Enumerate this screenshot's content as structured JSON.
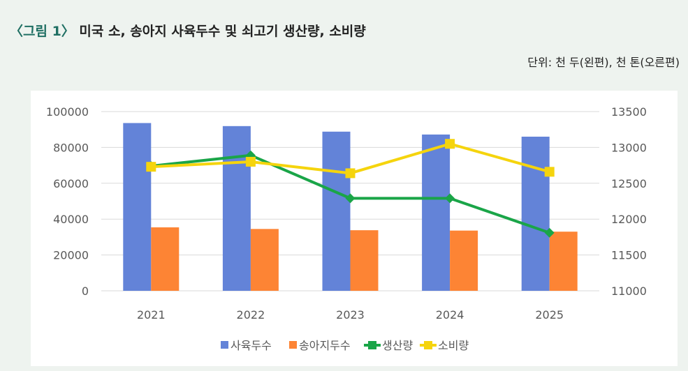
{
  "header": {
    "figure_label": "〈그림 1〉",
    "figure_title": "미국 소, 송아지 사육두수 및 쇠고기 생산량, 소비량",
    "units": "단위: 천 두(왼편), 천 톤(오른편)"
  },
  "colors": {
    "background": "#eef3ef",
    "title_accent": "#1f6f63",
    "cattle": "#6383d8",
    "calves": "#fd8434",
    "production": "#1aa548",
    "consumption": "#f5d40d"
  },
  "chart_data": {
    "type": "bar",
    "title": "",
    "categories": [
      "2021",
      "2022",
      "2023",
      "2024",
      "2025"
    ],
    "y_left": {
      "range": [
        0,
        100000
      ],
      "ticks": [
        "100000",
        "80000",
        "60000",
        "40000",
        "20000",
        "0"
      ],
      "tick_values": [
        100000,
        80000,
        60000,
        40000,
        20000,
        0
      ]
    },
    "y_right": {
      "range": [
        11000,
        13500
      ],
      "ticks": [
        "13500",
        "13000",
        "12500",
        "12000",
        "11500",
        "11000"
      ],
      "tick_values": [
        13500,
        13000,
        12500,
        12000,
        11500,
        11000
      ]
    },
    "grid": true,
    "legend_position": "bottom",
    "series": [
      {
        "name": "사육두수",
        "type": "bar",
        "axis": "left",
        "values": [
          93600,
          91900,
          88800,
          87200,
          86000
        ]
      },
      {
        "name": "송아지두수",
        "type": "bar",
        "axis": "left",
        "values": [
          35400,
          34500,
          33800,
          33600,
          33000
        ]
      },
      {
        "name": "생산량",
        "type": "line",
        "axis": "right",
        "values": [
          12740,
          12890,
          12290,
          12290,
          11810
        ]
      },
      {
        "name": "소비량",
        "type": "line",
        "axis": "right",
        "values": [
          12730,
          12800,
          12640,
          13050,
          12660
        ]
      }
    ]
  }
}
